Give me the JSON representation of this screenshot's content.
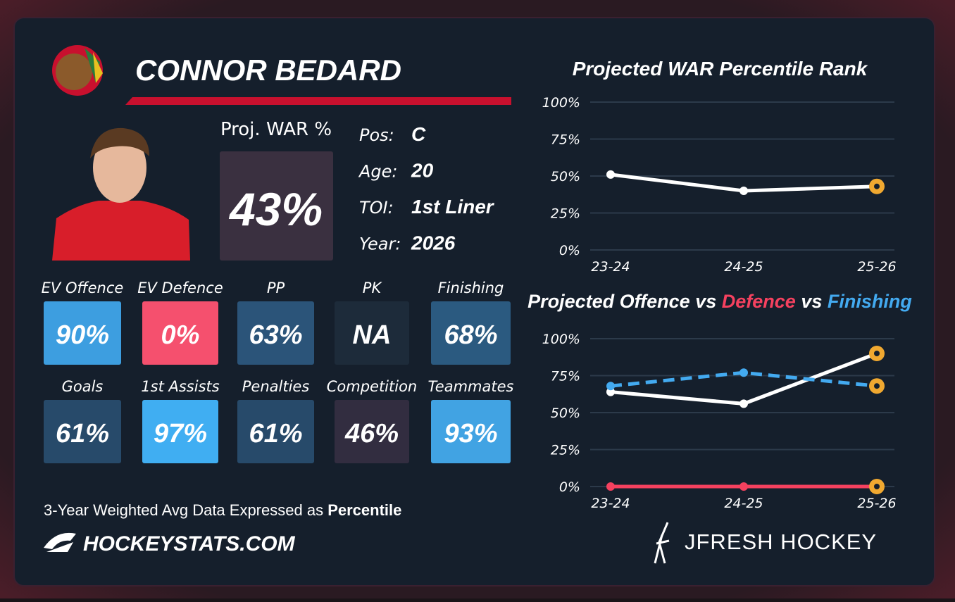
{
  "header": {
    "name": "CONNOR BEDARD"
  },
  "war": {
    "label": "Proj. WAR %",
    "value": "43%"
  },
  "info": [
    {
      "label": "Pos:",
      "value": "C"
    },
    {
      "label": "Age:",
      "value": "20"
    },
    {
      "label": "TOI:",
      "value": "1st Liner"
    },
    {
      "label": "Year:",
      "value": "2026"
    }
  ],
  "tiles": [
    {
      "label": "EV Offence",
      "value": "90%",
      "color": "#3d9ee0"
    },
    {
      "label": "EV Defence",
      "value": "0%",
      "color": "#f5506e"
    },
    {
      "label": "PP",
      "value": "63%",
      "color": "#2b5479"
    },
    {
      "label": "PK",
      "value": "NA",
      "color": "#1d2b3a"
    },
    {
      "label": "Finishing",
      "value": "68%",
      "color": "#2b5a80"
    },
    {
      "label": "Goals",
      "value": "61%",
      "color": "#274a6a"
    },
    {
      "label": "1st Assists",
      "value": "97%",
      "color": "#40aef2"
    },
    {
      "label": "Penalties",
      "value": "61%",
      "color": "#274a6a"
    },
    {
      "label": "Competition",
      "value": "46%",
      "color": "#322d40"
    },
    {
      "label": "Teammates",
      "value": "93%",
      "color": "#41a3e3"
    }
  ],
  "footer": {
    "note": "3-Year Weighted Avg Data Expressed as",
    "note_bold": "Percentile",
    "site": "HOCKEYSTATS.COM",
    "brand": "JFRESH HOCKEY"
  },
  "chart_data": [
    {
      "type": "line",
      "title": "Projected WAR Percentile Rank",
      "categories": [
        "23-24",
        "24-25",
        "25-26"
      ],
      "series": [
        {
          "color": "#ffffff",
          "values": [
            51,
            40,
            43
          ],
          "dashed": false
        }
      ],
      "ylim": [
        0,
        100
      ],
      "yticks": [
        {
          "value": 0,
          "label": "0%"
        },
        {
          "value": 25,
          "label": "25%"
        },
        {
          "value": 50,
          "label": "50%"
        },
        {
          "value": 75,
          "label": "75%"
        },
        {
          "value": 100,
          "label": "100%"
        }
      ],
      "grid": true,
      "highlight_last": true,
      "highlight_color": "#f0a830"
    },
    {
      "type": "line",
      "title_prefix": "Projected",
      "title_joiner": "vs",
      "categories": [
        "23-24",
        "24-25",
        "25-26"
      ],
      "series": [
        {
          "name": "Offence",
          "color": "#ffffff",
          "values": [
            64,
            56,
            90
          ],
          "dashed": false
        },
        {
          "name": "Defence",
          "color": "#f5415f",
          "values": [
            0,
            0,
            0
          ],
          "dashed": false
        },
        {
          "name": "Finishing",
          "color": "#43aaf0",
          "values": [
            68,
            77,
            68
          ],
          "dashed": true
        }
      ],
      "ylim": [
        0,
        100
      ],
      "yticks": [
        {
          "value": 0,
          "label": "0%"
        },
        {
          "value": 25,
          "label": "25%"
        },
        {
          "value": 50,
          "label": "50%"
        },
        {
          "value": 75,
          "label": "75%"
        },
        {
          "value": 100,
          "label": "100%"
        }
      ],
      "grid": true,
      "highlight_last": true,
      "highlight_color": "#f0a830"
    }
  ]
}
